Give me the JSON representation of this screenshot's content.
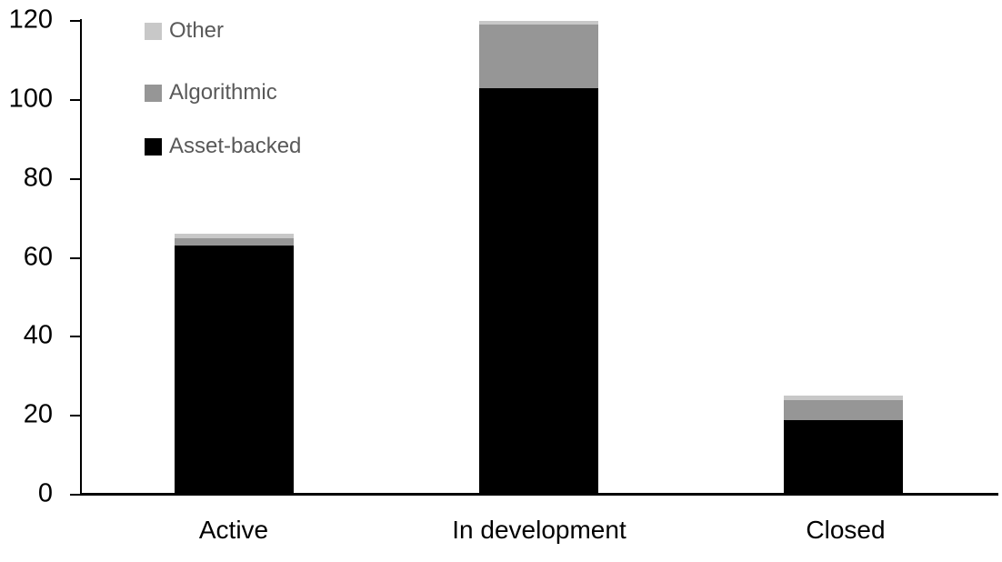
{
  "chart_data": {
    "type": "bar",
    "stacked": true,
    "title": "",
    "xlabel": "",
    "ylabel": "",
    "categories": [
      "Active",
      "In development",
      "Closed"
    ],
    "series": [
      {
        "name": "Asset-backed",
        "color": "#000000",
        "values": [
          63,
          103,
          19
        ]
      },
      {
        "name": "Algorithmic",
        "color": "#969696",
        "values": [
          2,
          16,
          5
        ]
      },
      {
        "name": "Other",
        "color": "#c8c8c8",
        "values": [
          1,
          1,
          1
        ]
      }
    ],
    "totals": [
      66,
      120,
      25
    ],
    "legend_order": [
      "Other",
      "Algorithmic",
      "Asset-backed"
    ],
    "legend_position": "top-left",
    "y_ticks": [
      0,
      20,
      40,
      60,
      80,
      100,
      120
    ],
    "ylim": [
      0,
      120
    ],
    "grid": false
  },
  "colors": {
    "axis": "#000000",
    "tick_label": "#000000",
    "category_label": "#000000",
    "legend_text": "#595959",
    "background": "#ffffff"
  }
}
